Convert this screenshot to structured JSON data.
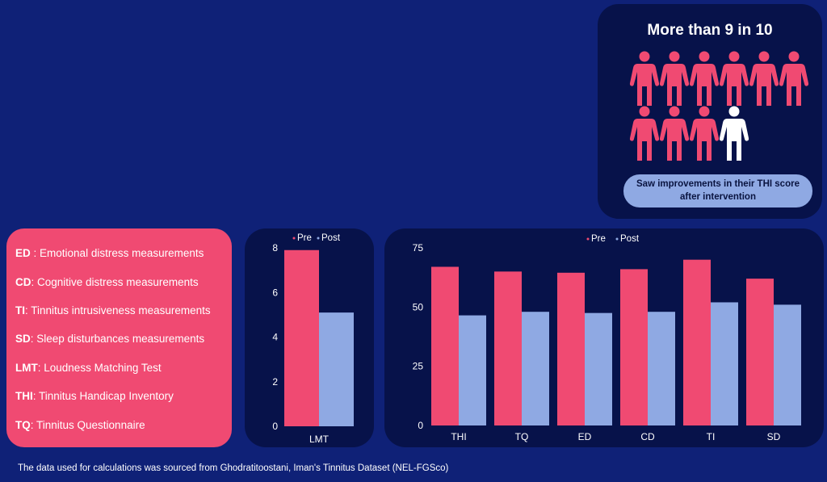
{
  "stat_card": {
    "title": "More than 9 in 10",
    "caption": "Saw improvements in their THI score after intervention",
    "people_total": 10,
    "people_highlighted": 9,
    "highlight_color": "#f04a72",
    "other_color": "#ffffff"
  },
  "glossary": [
    {
      "abbr": "ED",
      "sep": " : ",
      "text": "Emotional distress measurements"
    },
    {
      "abbr": "CD",
      "sep": ": ",
      "text": "Cognitive distress measurements"
    },
    {
      "abbr": "TI",
      "sep": ": ",
      "text": "Tinnitus intrusiveness measurements"
    },
    {
      "abbr": "SD",
      "sep": ": ",
      "text": "Sleep disturbances measurements"
    },
    {
      "abbr": "LMT",
      "sep": ": ",
      "text": "Loudness Matching Test"
    },
    {
      "abbr": "THI",
      "sep": ": ",
      "text": "Tinnitus Handicap Inventory"
    },
    {
      "abbr": "TQ",
      "sep": ": ",
      "text": "Tinnitus Questionnaire"
    }
  ],
  "colors": {
    "pre": "#f04a72",
    "post": "#8fa9e3",
    "axis_text": "#ffffff"
  },
  "chart_data": [
    {
      "type": "bar",
      "categories": [
        "LMT"
      ],
      "series": [
        {
          "name": "Pre",
          "values": [
            7.9
          ]
        },
        {
          "name": "Post",
          "values": [
            5.1
          ]
        }
      ],
      "ylim": [
        0,
        8
      ],
      "yticks": [
        0,
        2,
        4,
        6,
        8
      ],
      "legend": "top-center",
      "grid": false
    },
    {
      "type": "bar",
      "categories": [
        "THI",
        "TQ",
        "ED",
        "CD",
        "TI",
        "SD"
      ],
      "series": [
        {
          "name": "Pre",
          "values": [
            67,
            65,
            64.5,
            66,
            70,
            62
          ]
        },
        {
          "name": "Post",
          "values": [
            46.5,
            48,
            47.5,
            48,
            52,
            51
          ]
        }
      ],
      "ylim": [
        0,
        75
      ],
      "yticks": [
        0,
        25,
        50,
        75
      ],
      "legend": "top-center",
      "grid": false
    }
  ],
  "footer": "The data used for calculations was sourced from Ghodratitoostani, Iman's Tinnitus Dataset (NEL-FGSco)"
}
